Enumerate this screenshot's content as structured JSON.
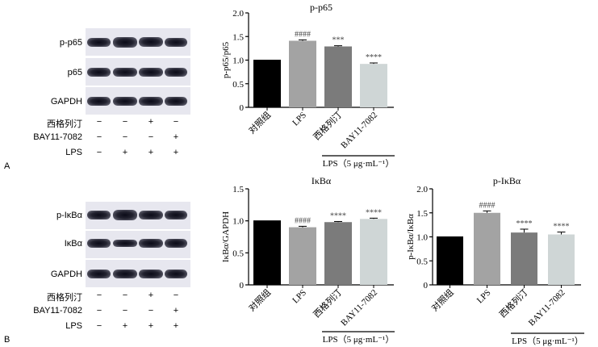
{
  "panels": [
    {
      "letter": "A",
      "blots": [
        "p-p65",
        "p65",
        "GAPDH"
      ],
      "treatments": [
        {
          "label": "西格列汀",
          "signs": [
            "−",
            "−",
            "+",
            "−"
          ]
        },
        {
          "label": "BAY11-7082",
          "signs": [
            "−",
            "−",
            "−",
            "+"
          ]
        },
        {
          "label": "LPS",
          "signs": [
            "−",
            "+",
            "+",
            "+"
          ]
        }
      ]
    },
    {
      "letter": "B",
      "blots": [
        "p-IκBα",
        "IκBα",
        "GAPDH"
      ],
      "treatments": [
        {
          "label": "西格列汀",
          "signs": [
            "−",
            "−",
            "+",
            "−"
          ]
        },
        {
          "label": "BAY11-7082",
          "signs": [
            "−",
            "−",
            "−",
            "+"
          ]
        },
        {
          "label": "LPS",
          "signs": [
            "−",
            "+",
            "+",
            "+"
          ]
        }
      ]
    }
  ],
  "chart_data": [
    {
      "type": "bar",
      "title": "p-p65",
      "ylabel": "p-p65/p65",
      "xlabel": "",
      "ylim": [
        0,
        2.0
      ],
      "yticks": [
        "0",
        "0.5",
        "1.0",
        "1.5",
        "2.0"
      ],
      "categories": [
        "对照组",
        "LPS",
        "西格列汀",
        "BAY11-7082"
      ],
      "values": [
        1.0,
        1.41,
        1.29,
        0.92
      ],
      "errors": [
        0.0,
        0.02,
        0.015,
        0.02
      ],
      "annotations": [
        "",
        "####",
        "***",
        "****"
      ],
      "bracket_label": "LPS（5 μg·mL⁻¹）",
      "colors": [
        "#000000",
        "#a3a3a3",
        "#7b7b7b",
        "#cfd6d6"
      ]
    },
    {
      "type": "bar",
      "title": "IκBα",
      "ylabel": "IκBα/GAPDH",
      "xlabel": "",
      "ylim": [
        0,
        1.5
      ],
      "yticks": [
        "0",
        "0.5",
        "1.0",
        "1.5"
      ],
      "categories": [
        "对照组",
        "LPS",
        "西格列汀",
        "BAY11-7082"
      ],
      "values": [
        1.0,
        0.9,
        0.98,
        1.03
      ],
      "errors": [
        0.0,
        0.015,
        0.01,
        0.012
      ],
      "annotations": [
        "",
        "####",
        "****",
        "****"
      ],
      "bracket_label": "LPS（5 μg·mL⁻¹）",
      "colors": [
        "#000000",
        "#a3a3a3",
        "#7b7b7b",
        "#cfd6d6"
      ]
    },
    {
      "type": "bar",
      "title": "p-IκBα",
      "ylabel": "p-IκBα/IκBα",
      "xlabel": "",
      "ylim": [
        0,
        2.0
      ],
      "yticks": [
        "0",
        "0.5",
        "1.0",
        "1.5",
        "2.0"
      ],
      "categories": [
        "对照组",
        "LPS",
        "西格列汀",
        "BAY11-7082"
      ],
      "values": [
        1.0,
        1.5,
        1.09,
        1.05
      ],
      "errors": [
        0.0,
        0.04,
        0.07,
        0.05
      ],
      "annotations": [
        "",
        "####",
        "****",
        "****"
      ],
      "bracket_label": "LPS（5 μg·mL⁻¹）",
      "colors": [
        "#000000",
        "#a3a3a3",
        "#7b7b7b",
        "#cfd6d6"
      ]
    }
  ]
}
